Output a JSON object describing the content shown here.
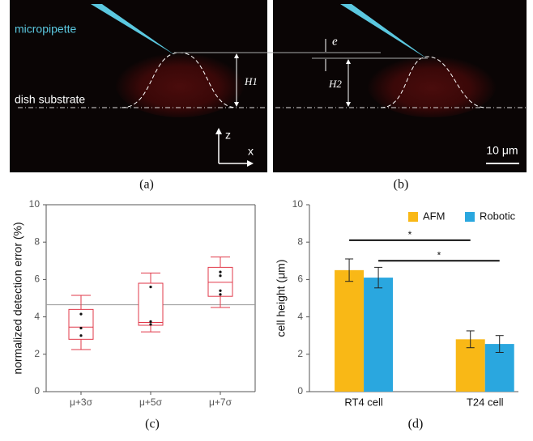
{
  "panels": {
    "a": {
      "caption": "(a)",
      "pipette_label": "micropipette",
      "substrate_label": "dish substrate",
      "height_label": "H1",
      "z_label": "z",
      "x_label": "x"
    },
    "b": {
      "caption": "(b)",
      "offset_label": "e",
      "height_label": "H2",
      "scale_label": "10 μm"
    }
  },
  "chart_data": [
    {
      "type": "box",
      "caption": "(c)",
      "y_label": "normalized detection error (%)",
      "categories": [
        "μ+3σ",
        "μ+5σ",
        "μ+7σ"
      ],
      "color": "#e0394a",
      "boxes": [
        {
          "low": 2.25,
          "q1": 2.8,
          "median": 3.45,
          "q3": 4.4,
          "high": 5.15,
          "points": [
            4.15,
            3.4,
            3.0
          ]
        },
        {
          "low": 3.2,
          "q1": 3.55,
          "median": 3.7,
          "q3": 5.8,
          "high": 6.35,
          "points": [
            5.6,
            3.75,
            3.6
          ]
        },
        {
          "low": 4.5,
          "q1": 5.1,
          "median": 5.85,
          "q3": 6.65,
          "high": 7.2,
          "points": [
            6.4,
            6.2,
            5.4,
            5.2
          ]
        }
      ],
      "reference_line": 4.65,
      "ylim": [
        0,
        10
      ],
      "yticks": [
        0,
        2,
        4,
        6,
        8,
        10
      ]
    },
    {
      "type": "bar",
      "caption": "(d)",
      "y_label": "cell height (μm)",
      "categories": [
        "RT4 cell",
        "T24 cell"
      ],
      "series": [
        {
          "name": "AFM",
          "color": "#f9b816",
          "values": [
            6.5,
            2.8
          ],
          "errors": [
            0.6,
            0.45
          ]
        },
        {
          "name": "Robotic",
          "color": "#2aa7df",
          "values": [
            6.1,
            2.55
          ],
          "errors": [
            0.55,
            0.45
          ]
        }
      ],
      "significance": [
        {
          "text": "*",
          "y": 8.1,
          "series": 0
        },
        {
          "text": "*",
          "y": 7.0,
          "series": 1
        }
      ],
      "legend": "upper right",
      "ylim": [
        0,
        10
      ],
      "yticks": [
        0,
        2,
        4,
        6,
        8,
        10
      ]
    }
  ]
}
